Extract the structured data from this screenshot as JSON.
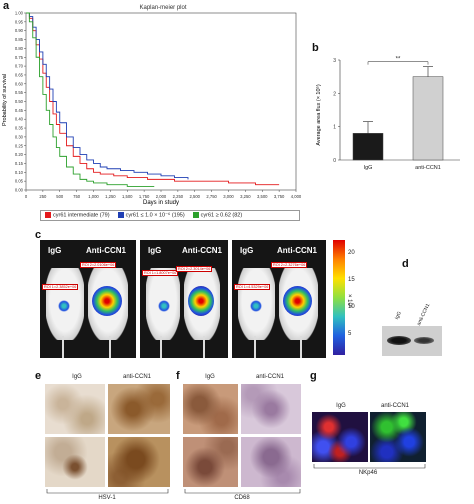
{
  "panels": {
    "a": {
      "letter": "a"
    },
    "b": {
      "letter": "b"
    },
    "c": {
      "letter": "c"
    },
    "d": {
      "letter": "d"
    },
    "e": {
      "letter": "e"
    },
    "f": {
      "letter": "f"
    },
    "g": {
      "letter": "g"
    }
  },
  "colors": {
    "red": "#e41a1c",
    "blue": "#1f3fb4",
    "green": "#2ca02c",
    "bar_dark": "#1a1a1a",
    "bar_light": "#d0d0d0"
  },
  "chart_data": [
    {
      "type": "line",
      "title": "Kaplan-meier plot",
      "xlabel": "Days in study",
      "ylabel": "Probability of survival",
      "xlim": [
        0,
        4000
      ],
      "ylim": [
        0,
        1.0
      ],
      "x_ticks": [
        "0",
        "250",
        "500",
        "750",
        "1,000",
        "1,250",
        "1,500",
        "1,750",
        "2,000",
        "2,250",
        "2,500",
        "2,750",
        "3,000",
        "3,250",
        "3,500",
        "3,750",
        "4,000"
      ],
      "y_ticks": [
        "0.00",
        "0.05",
        "0.10",
        "0.15",
        "0.20",
        "0.25",
        "0.30",
        "0.35",
        "0.40",
        "0.45",
        "0.50",
        "0.55",
        "0.60",
        "0.65",
        "0.70",
        "0.75",
        "0.80",
        "0.85",
        "0.90",
        "0.95",
        "1.00"
      ],
      "series": [
        {
          "name": "cyr61 intermediate (79)",
          "color": "#e41a1c",
          "x": [
            0,
            50,
            100,
            150,
            200,
            250,
            300,
            350,
            400,
            450,
            500,
            600,
            700,
            800,
            900,
            1000,
            1100,
            1300,
            1500,
            1800,
            2200,
            2600,
            3000,
            3400,
            3750
          ],
          "y": [
            1.0,
            0.97,
            0.9,
            0.82,
            0.74,
            0.66,
            0.58,
            0.5,
            0.43,
            0.37,
            0.32,
            0.25,
            0.19,
            0.15,
            0.12,
            0.1,
            0.09,
            0.08,
            0.07,
            0.06,
            0.05,
            0.05,
            0.04,
            0.03,
            0.03
          ]
        },
        {
          "name": "cyr61 ≤ 1.0 × 10⁻⁶ (195)",
          "color": "#1f3fb4",
          "x": [
            0,
            50,
            100,
            150,
            200,
            250,
            300,
            350,
            400,
            450,
            500,
            600,
            700,
            800,
            900,
            1000,
            1100,
            1200,
            1400,
            1600,
            1800,
            2000,
            2200,
            2400
          ],
          "y": [
            1.0,
            0.98,
            0.92,
            0.85,
            0.78,
            0.71,
            0.64,
            0.57,
            0.5,
            0.44,
            0.38,
            0.3,
            0.24,
            0.2,
            0.17,
            0.15,
            0.13,
            0.12,
            0.11,
            0.1,
            0.09,
            0.08,
            0.07,
            0.06
          ]
        },
        {
          "name": "cyr61 ≥ 0.62 (82)",
          "color": "#2ca02c",
          "x": [
            0,
            50,
            100,
            150,
            200,
            250,
            300,
            350,
            400,
            450,
            500,
            600,
            700,
            800,
            900,
            1000,
            1200,
            1500,
            1900
          ],
          "y": [
            1.0,
            0.95,
            0.86,
            0.75,
            0.64,
            0.54,
            0.45,
            0.37,
            0.3,
            0.24,
            0.19,
            0.13,
            0.09,
            0.06,
            0.05,
            0.04,
            0.03,
            0.02,
            0.02
          ]
        }
      ]
    },
    {
      "type": "bar",
      "title": "",
      "ylabel": "Average area flux (× 10⁵)",
      "ylim": [
        0,
        3
      ],
      "y_ticks": [
        "0",
        "1",
        "2",
        "3"
      ],
      "categories": [
        "IgG",
        "anti-CCN1"
      ],
      "values": [
        0.8,
        2.5
      ],
      "errors": [
        0.35,
        0.3
      ],
      "significance": "**"
    }
  ],
  "imaging": {
    "groups": [
      {
        "left_label": "IgG",
        "right_label": "Anti-CCN1",
        "roi_1": "ROI 1=2.3852e+06",
        "roi_2": "ROI 2=2.0106e+06"
      },
      {
        "left_label": "IgG",
        "right_label": "Anti-CCN1",
        "roi_1": "ROI 1=1.8007e+06",
        "roi_2": "ROI 2=2.3014e+06"
      },
      {
        "left_label": "IgG",
        "right_label": "Anti-CCN1",
        "roi_1": "ROI 1=4.5329e+06",
        "roi_2": "ROI 2=2.3276e+06"
      }
    ],
    "scale": {
      "ticks": [
        "20",
        "15",
        "10",
        "5"
      ],
      "unit": "× 10⁶"
    }
  },
  "blot": {
    "lane_1": "IgG",
    "lane_2": "anti-CCN1"
  },
  "ihc_e": {
    "left": "IgG",
    "right": "anti-CCN1",
    "marker": "HSV-1"
  },
  "ihc_f": {
    "left": "IgG",
    "right": "anti-CCN1",
    "marker": "CD68"
  },
  "if_g": {
    "left": "IgG",
    "right": "anti-CCN1",
    "marker": "NKp46"
  }
}
